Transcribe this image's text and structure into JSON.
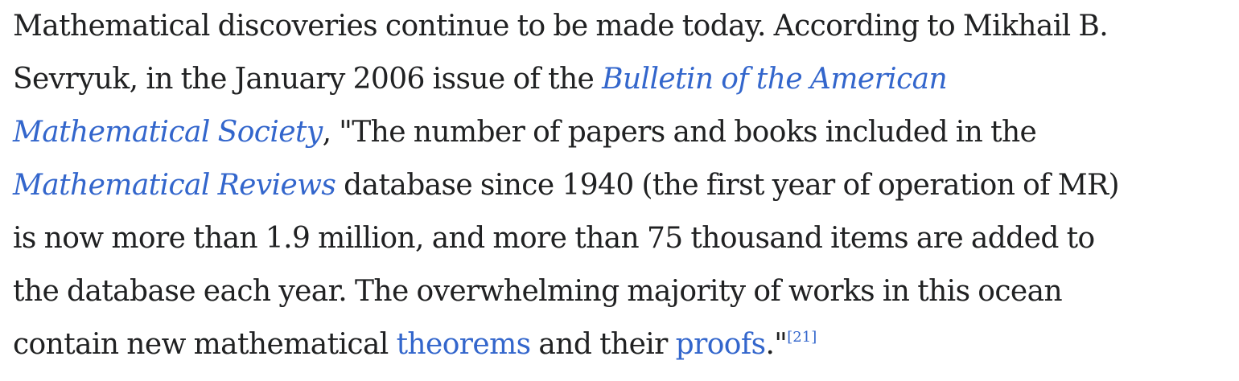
{
  "paragraph": {
    "line1": "Mathematical discoveries continue to be made today. According to Mikhail B.",
    "line2_start": "Sevryuk, in the January 2006 issue of the ",
    "link_bams_part1": "Bulletin of the American",
    "link_bams_part2": "Mathematical Society",
    "line3_rest": ", \"The number of papers and books included in the",
    "link_mr": "Mathematical Reviews",
    "line4_rest": " database since 1940 (the first year of operation of MR)",
    "line5": "is now more than 1.9 million, and more than 75 thousand items are added to",
    "line6": "the database each year. The overwhelming majority of works in this ocean",
    "line7_start": "contain new mathematical ",
    "link_theorems": "theorems",
    "line7_mid": " and their ",
    "link_proofs": "proofs",
    "line7_end": ".\"",
    "citation": "[21]"
  },
  "colors": {
    "text": "#202122",
    "link": "#3366cc"
  }
}
